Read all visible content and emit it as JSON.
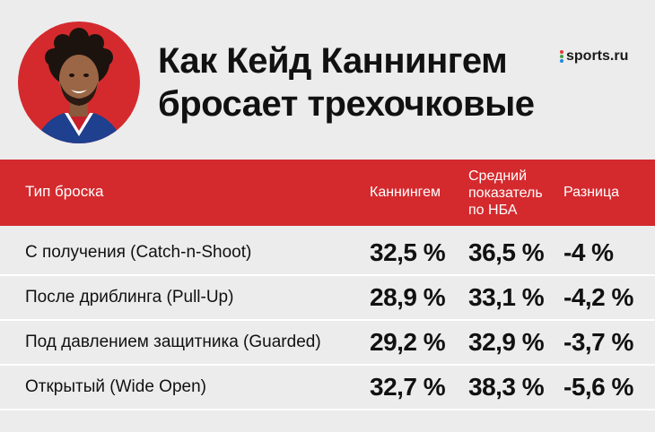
{
  "title": {
    "line1": "Как Кейд Каннингем",
    "line2": "бросает трехочковые"
  },
  "brand": {
    "label": "sports.ru"
  },
  "colors": {
    "accent": "#d42a2e",
    "background": "#ececec"
  },
  "table": {
    "headers": {
      "type": "Тип броска",
      "cunningham": "Каннингем",
      "avg_line1": "Средний",
      "avg_line2": "показатель",
      "avg_line3": "по НБА",
      "diff": "Разница"
    },
    "rows": [
      {
        "type": "С получения (Catch-n-Shoot)",
        "cunningham": "32,5 %",
        "avg": "36,5 %",
        "diff": "-4 %"
      },
      {
        "type": "После дриблинга (Pull-Up)",
        "cunningham": "28,9 %",
        "avg": "33,1 %",
        "diff": "-4,2 %"
      },
      {
        "type": "Под давлением защитника (Guarded)",
        "cunningham": "29,2 %",
        "avg": "32,9 %",
        "diff": "-3,7 %"
      },
      {
        "type": "Открытый (Wide Open)",
        "cunningham": "32,7 %",
        "avg": "38,3 %",
        "diff": "-5,6 %"
      }
    ]
  }
}
